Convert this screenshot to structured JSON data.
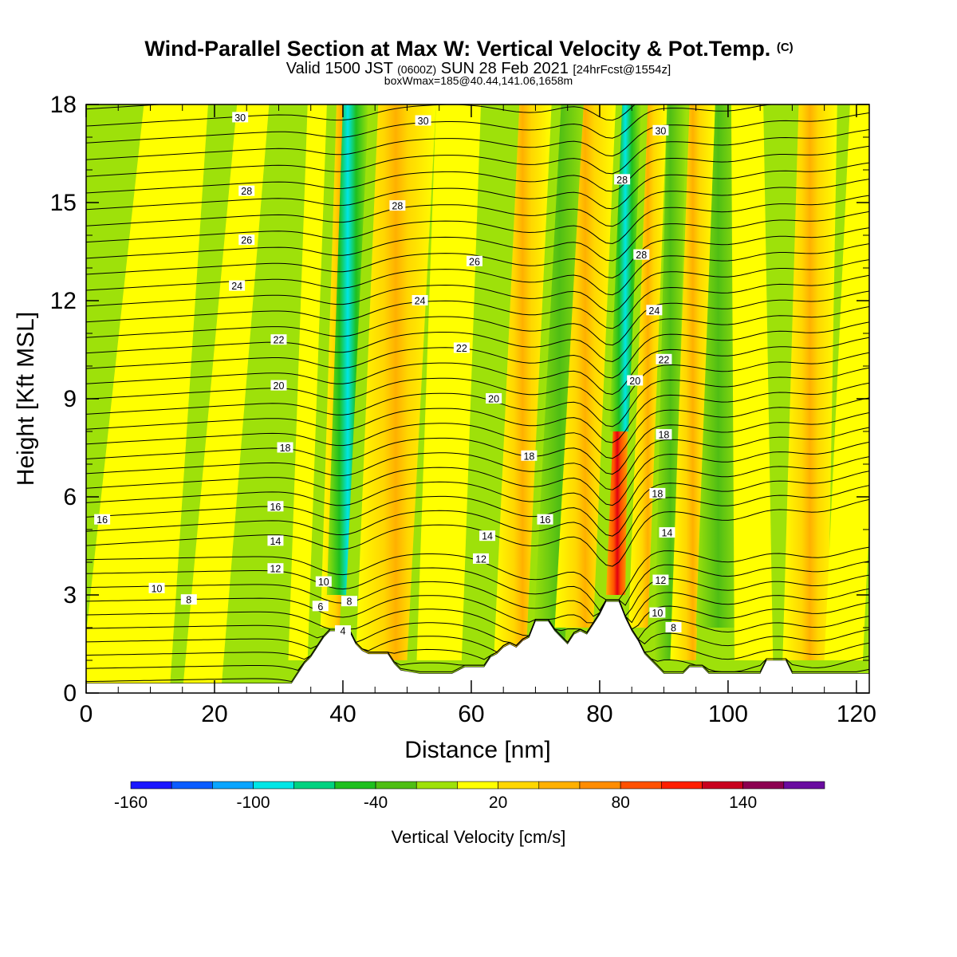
{
  "chart_data": {
    "type": "heatmap",
    "title": "Wind-Parallel Section at Max W: Vertical Velocity & Pot.Temp.",
    "copyright": "(C)",
    "subtitle_main": "Valid 1500 JST",
    "subtitle_z": "(0600Z)",
    "subtitle_date": "SUN 28 Feb 2021",
    "subtitle_fcst": "[24hrFcst@1554z]",
    "box_info": "boxWmax=185@40.44,141.06,1658m",
    "xlabel": "Distance [nm]",
    "ylabel": "Height [Kft MSL]",
    "xlim": [
      0,
      122
    ],
    "ylim": [
      0,
      18
    ],
    "x_ticks": [
      0,
      20,
      40,
      60,
      80,
      100,
      120
    ],
    "y_ticks": [
      0,
      3,
      6,
      9,
      12,
      15,
      18
    ],
    "colorbar": {
      "label": "Vertical Velocity [cm/s]",
      "tick_labels": [
        -160,
        -100,
        -40,
        20,
        80,
        140
      ],
      "colors": [
        "#1a16ff",
        "#0a5cff",
        "#0aa5ff",
        "#00e6e6",
        "#00d280",
        "#1ebf1e",
        "#4fbe14",
        "#9ee10a",
        "#ffff00",
        "#ffd700",
        "#ffb000",
        "#ff8c00",
        "#ff5000",
        "#ff1e00",
        "#c8001e",
        "#8c0050",
        "#6a0ca0"
      ]
    },
    "theta_contour_labels": [
      {
        "x": 2.5,
        "y": 5.3,
        "v": "16"
      },
      {
        "x": 11,
        "y": 3.2,
        "v": "10"
      },
      {
        "x": 16,
        "y": 2.85,
        "v": "8"
      },
      {
        "x": 23.5,
        "y": 12.45,
        "v": "24"
      },
      {
        "x": 25,
        "y": 13.85,
        "v": "26"
      },
      {
        "x": 25,
        "y": 15.35,
        "v": "28"
      },
      {
        "x": 24,
        "y": 17.6,
        "v": "30"
      },
      {
        "x": 30,
        "y": 10.8,
        "v": "22"
      },
      {
        "x": 30,
        "y": 9.4,
        "v": "20"
      },
      {
        "x": 31,
        "y": 7.5,
        "v": "18"
      },
      {
        "x": 29.5,
        "y": 5.7,
        "v": "16"
      },
      {
        "x": 29.5,
        "y": 4.65,
        "v": "14"
      },
      {
        "x": 29.5,
        "y": 3.8,
        "v": "12"
      },
      {
        "x": 37,
        "y": 3.4,
        "v": "10"
      },
      {
        "x": 36.5,
        "y": 2.65,
        "v": "6"
      },
      {
        "x": 41,
        "y": 2.8,
        "v": "8"
      },
      {
        "x": 40,
        "y": 1.9,
        "v": "4"
      },
      {
        "x": 48.5,
        "y": 14.9,
        "v": "28"
      },
      {
        "x": 52.5,
        "y": 17.5,
        "v": "30"
      },
      {
        "x": 52,
        "y": 12,
        "v": "24"
      },
      {
        "x": 58.5,
        "y": 10.55,
        "v": "22"
      },
      {
        "x": 60.5,
        "y": 13.2,
        "v": "26"
      },
      {
        "x": 63.5,
        "y": 9.0,
        "v": "20"
      },
      {
        "x": 69,
        "y": 7.25,
        "v": "18"
      },
      {
        "x": 71.5,
        "y": 5.3,
        "v": "16"
      },
      {
        "x": 62.5,
        "y": 4.8,
        "v": "14"
      },
      {
        "x": 61.5,
        "y": 4.1,
        "v": "12"
      },
      {
        "x": 83.5,
        "y": 15.7,
        "v": "28"
      },
      {
        "x": 86.5,
        "y": 13.4,
        "v": "28"
      },
      {
        "x": 89.5,
        "y": 17.2,
        "v": "30"
      },
      {
        "x": 88.5,
        "y": 11.7,
        "v": "24"
      },
      {
        "x": 90,
        "y": 10.2,
        "v": "22"
      },
      {
        "x": 85.5,
        "y": 9.55,
        "v": "20"
      },
      {
        "x": 90,
        "y": 7.9,
        "v": "18"
      },
      {
        "x": 89,
        "y": 6.1,
        "v": "18"
      },
      {
        "x": 90.5,
        "y": 4.9,
        "v": "14"
      },
      {
        "x": 89.5,
        "y": 3.45,
        "v": "12"
      },
      {
        "x": 89,
        "y": 2.45,
        "v": "10"
      },
      {
        "x": 91.5,
        "y": 2.0,
        "v": "8"
      }
    ]
  }
}
